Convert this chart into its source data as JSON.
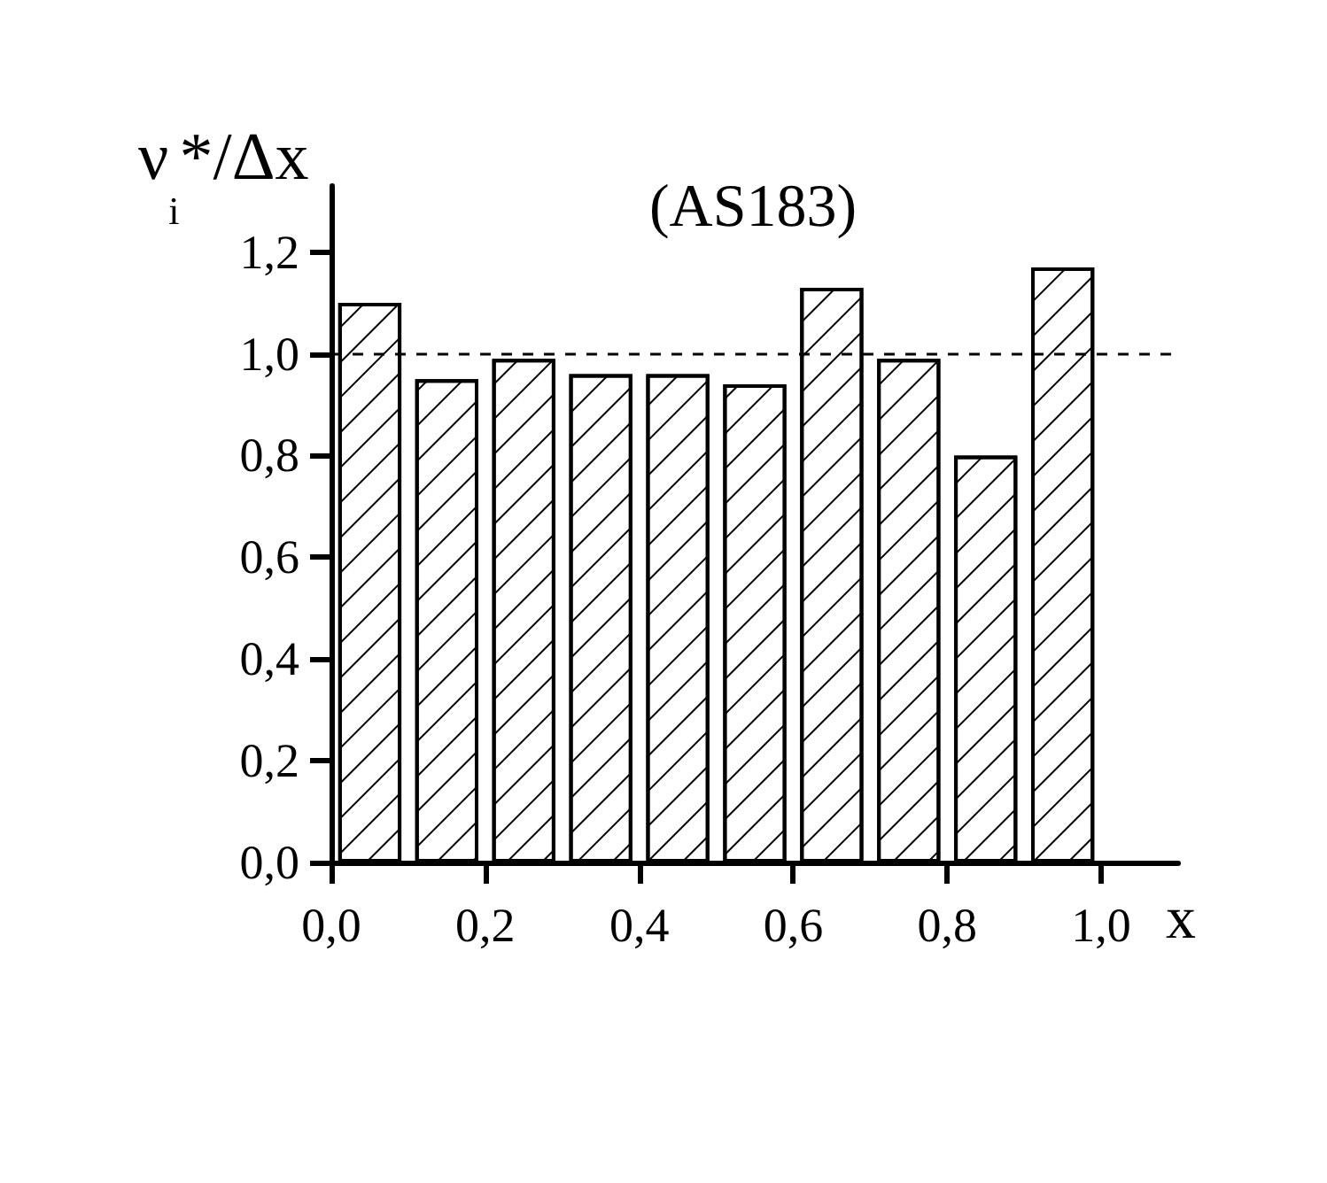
{
  "chart_data": {
    "type": "histogram",
    "title": "(AS183)",
    "xlabel": "x",
    "ylabel": "ν$_{i}$*/Δx",
    "bins": [
      0,
      0.1,
      0.2,
      0.3,
      0.4,
      0.5,
      0.6,
      0.7,
      0.8,
      0.9,
      1.0
    ],
    "values": [
      1.1,
      0.95,
      0.99,
      0.96,
      0.96,
      0.94,
      1.13,
      0.99,
      0.8,
      1.17
    ],
    "color": "#ffffff",
    "xlim": [
      0,
      1.1
    ],
    "xticks": [
      {
        "value": 0,
        "label": "0,0"
      },
      {
        "value": 0.2,
        "label": "0,2"
      },
      {
        "value": 0.4,
        "label": "0,4"
      },
      {
        "value": 0.6,
        "label": "0,6"
      },
      {
        "value": 0.8,
        "label": "0,8"
      },
      {
        "value": 1.0,
        "label": "1,0"
      }
    ],
    "ylim": [
      0,
      1.33
    ],
    "yticks": [
      {
        "value": 0,
        "label": "0,0"
      },
      {
        "value": 0.2,
        "label": "0,2"
      },
      {
        "value": 0.4,
        "label": "0,4"
      },
      {
        "value": 0.6,
        "label": "0,6"
      },
      {
        "value": 0.8,
        "label": "0,8"
      },
      {
        "value": 1.0,
        "label": "1,0"
      },
      {
        "value": 1.2,
        "label": "1,2"
      }
    ],
    "ref_lines": [
      {
        "axis": "y",
        "value": 1.0,
        "line_style": "dashed",
        "color": "#000000"
      }
    ],
    "grid": false
  }
}
